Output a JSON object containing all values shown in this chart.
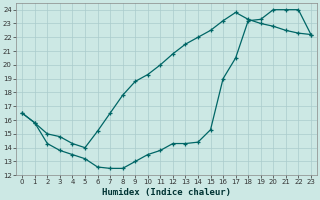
{
  "xlabel": "Humidex (Indice chaleur)",
  "bg_color": "#cce8e4",
  "grid_color": "#aacccc",
  "line_color": "#006666",
  "xlim": [
    -0.5,
    23.5
  ],
  "ylim": [
    12,
    24.5
  ],
  "xticks": [
    0,
    1,
    2,
    3,
    4,
    5,
    6,
    7,
    8,
    9,
    10,
    11,
    12,
    13,
    14,
    15,
    16,
    17,
    18,
    19,
    20,
    21,
    22,
    23
  ],
  "yticks": [
    12,
    13,
    14,
    15,
    16,
    17,
    18,
    19,
    20,
    21,
    22,
    23,
    24
  ],
  "line1_x": [
    0,
    1,
    2,
    3,
    4,
    5,
    6,
    7,
    8,
    9,
    10,
    11,
    12,
    13,
    14,
    15,
    16,
    17,
    18,
    19,
    20,
    21,
    22,
    23
  ],
  "line1_y": [
    16.5,
    15.8,
    14.3,
    13.8,
    13.5,
    13.2,
    12.6,
    12.5,
    12.5,
    13.0,
    13.5,
    13.8,
    14.3,
    14.3,
    14.4,
    15.3,
    19.0,
    20.5,
    23.2,
    23.3,
    24.0,
    24.0,
    24.0,
    22.2
  ],
  "line2_x": [
    0,
    1,
    2,
    3,
    4,
    5,
    6,
    7,
    8,
    9,
    10,
    11,
    12,
    13,
    14,
    15,
    16,
    17,
    18,
    19,
    20,
    21,
    22,
    23
  ],
  "line2_y": [
    16.5,
    15.8,
    15.0,
    14.8,
    14.3,
    14.0,
    15.2,
    16.5,
    17.8,
    18.8,
    19.3,
    20.0,
    20.8,
    21.5,
    22.0,
    22.5,
    23.2,
    23.8,
    23.3,
    23.0,
    22.8,
    22.5,
    22.3,
    22.2
  ]
}
